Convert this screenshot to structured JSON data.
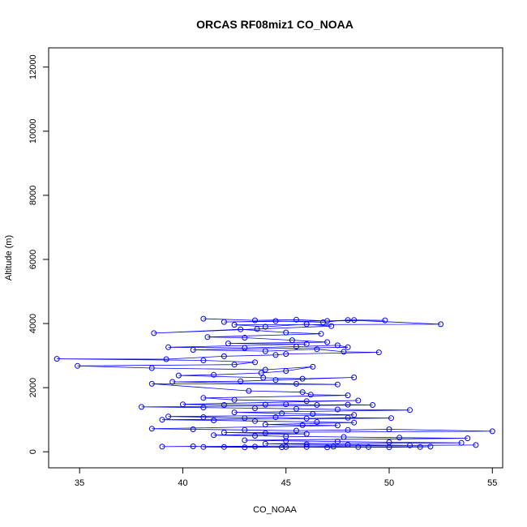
{
  "chart_data": {
    "type": "scatter",
    "title": "ORCAS RF08miz1 CO_NOAA",
    "xlabel": "CO_NOAA",
    "ylabel": "Altitude (m)",
    "xlim": [
      33.5,
      55.5
    ],
    "ylim": [
      -500,
      12600
    ],
    "xticks": [
      35,
      40,
      45,
      50,
      55
    ],
    "yticks": [
      0,
      2000,
      4000,
      6000,
      8000,
      10000,
      12000
    ],
    "grid": false,
    "legend": "none",
    "connect_points": true,
    "colors": {
      "series": "#0000ff",
      "axes": "#000000",
      "background": "#ffffff"
    },
    "series": [
      {
        "values": [
          [
            41.0,
            4150
          ],
          [
            43.5,
            4100
          ],
          [
            45.5,
            4120
          ],
          [
            47.0,
            4080
          ],
          [
            48.3,
            4110
          ],
          [
            49.8,
            4100
          ],
          [
            42.0,
            4050
          ],
          [
            44.5,
            4080
          ],
          [
            46.8,
            4040
          ],
          [
            48.0,
            4110
          ],
          [
            52.5,
            3980
          ],
          [
            42.5,
            3960
          ],
          [
            44.0,
            3900
          ],
          [
            46.0,
            3980
          ],
          [
            47.2,
            3920
          ],
          [
            43.6,
            3830
          ],
          [
            38.6,
            3700
          ],
          [
            42.8,
            3820
          ],
          [
            45.0,
            3720
          ],
          [
            46.7,
            3680
          ],
          [
            41.2,
            3580
          ],
          [
            43.0,
            3560
          ],
          [
            45.3,
            3480
          ],
          [
            47.0,
            3420
          ],
          [
            42.2,
            3380
          ],
          [
            46.0,
            3360
          ],
          [
            39.3,
            3260
          ],
          [
            43.0,
            3240
          ],
          [
            45.5,
            3280
          ],
          [
            47.5,
            3320
          ],
          [
            48.0,
            3260
          ],
          [
            40.5,
            3180
          ],
          [
            44.0,
            3140
          ],
          [
            46.5,
            3200
          ],
          [
            47.8,
            3120
          ],
          [
            49.5,
            3100
          ],
          [
            45.0,
            3050
          ],
          [
            44.5,
            3020
          ],
          [
            42.0,
            2980
          ],
          [
            39.2,
            2890
          ],
          [
            33.9,
            2900
          ],
          [
            41.0,
            2850
          ],
          [
            43.5,
            2790
          ],
          [
            42.5,
            2720
          ],
          [
            34.9,
            2680
          ],
          [
            38.5,
            2610
          ],
          [
            44.0,
            2560
          ],
          [
            46.3,
            2650
          ],
          [
            45.0,
            2520
          ],
          [
            43.8,
            2460
          ],
          [
            41.5,
            2400
          ],
          [
            39.8,
            2380
          ],
          [
            43.9,
            2310
          ],
          [
            45.8,
            2280
          ],
          [
            48.3,
            2320
          ],
          [
            44.5,
            2240
          ],
          [
            42.8,
            2200
          ],
          [
            39.5,
            2180
          ],
          [
            45.5,
            2120
          ],
          [
            47.5,
            2100
          ],
          [
            38.5,
            2120
          ],
          [
            43.2,
            1900
          ],
          [
            45.8,
            1860
          ],
          [
            46.2,
            1780
          ],
          [
            48.0,
            1760
          ],
          [
            41.0,
            1680
          ],
          [
            42.5,
            1620
          ],
          [
            46.0,
            1580
          ],
          [
            48.5,
            1600
          ],
          [
            40.0,
            1480
          ],
          [
            42.0,
            1460
          ],
          [
            44.0,
            1470
          ],
          [
            45.0,
            1480
          ],
          [
            46.5,
            1460
          ],
          [
            48.0,
            1470
          ],
          [
            49.2,
            1460
          ],
          [
            38.0,
            1400
          ],
          [
            41.0,
            1380
          ],
          [
            43.5,
            1360
          ],
          [
            45.5,
            1340
          ],
          [
            47.5,
            1320
          ],
          [
            51.0,
            1300
          ],
          [
            42.5,
            1230
          ],
          [
            44.8,
            1200
          ],
          [
            46.3,
            1180
          ],
          [
            48.3,
            1150
          ],
          [
            39.3,
            1100
          ],
          [
            41.0,
            1080
          ],
          [
            43.0,
            1050
          ],
          [
            44.5,
            1080
          ],
          [
            46.0,
            1040
          ],
          [
            48.0,
            1060
          ],
          [
            50.1,
            1050
          ],
          [
            39.0,
            1000
          ],
          [
            41.5,
            980
          ],
          [
            43.5,
            960
          ],
          [
            46.5,
            930
          ],
          [
            48.3,
            910
          ],
          [
            44.0,
            850
          ],
          [
            45.8,
            830
          ],
          [
            47.5,
            820
          ],
          [
            38.5,
            720
          ],
          [
            40.5,
            700
          ],
          [
            43.0,
            680
          ],
          [
            45.5,
            660
          ],
          [
            48.0,
            680
          ],
          [
            50.0,
            700
          ],
          [
            55.0,
            640
          ],
          [
            42.0,
            600
          ],
          [
            44.0,
            580
          ],
          [
            46.0,
            560
          ],
          [
            41.5,
            520
          ],
          [
            43.5,
            500
          ],
          [
            45.0,
            480
          ],
          [
            47.8,
            460
          ],
          [
            50.5,
            440
          ],
          [
            53.8,
            420
          ],
          [
            43.0,
            360
          ],
          [
            45.0,
            340
          ],
          [
            47.5,
            320
          ],
          [
            50.0,
            300
          ],
          [
            53.5,
            280
          ],
          [
            44.0,
            250
          ],
          [
            46.0,
            230
          ],
          [
            48.0,
            220
          ],
          [
            51.0,
            200
          ],
          [
            54.2,
            210
          ],
          [
            39.0,
            160
          ],
          [
            40.5,
            170
          ],
          [
            42.0,
            150
          ],
          [
            43.5,
            160
          ],
          [
            44.8,
            140
          ],
          [
            46.0,
            150
          ],
          [
            47.3,
            160
          ],
          [
            48.5,
            150
          ],
          [
            50.0,
            140
          ],
          [
            51.5,
            150
          ],
          [
            52.0,
            160
          ],
          [
            41.0,
            150
          ],
          [
            43.0,
            140
          ],
          [
            45.0,
            150
          ],
          [
            47.0,
            140
          ],
          [
            49.0,
            150
          ]
        ]
      }
    ]
  }
}
